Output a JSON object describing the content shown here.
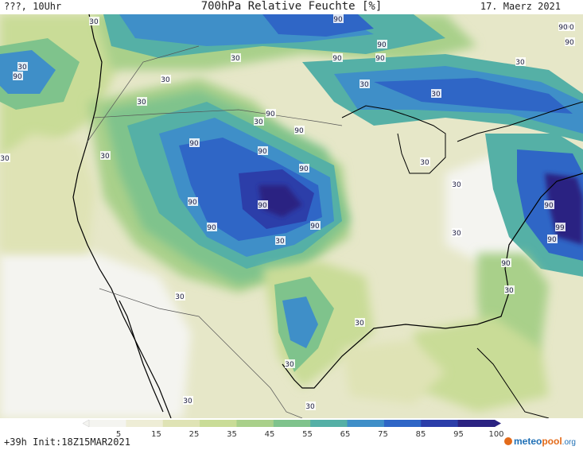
{
  "header": {
    "left": "???, 10Uhr",
    "title": "700hPa Relative Feuchte [%]",
    "date": "17. Maerz 2021"
  },
  "footer": {
    "left": "+39h Init:18Z15MAR2021",
    "logo_meteo": "meteo",
    "logo_pool": "pool",
    "logo_org": ".org"
  },
  "legend": {
    "ticks": [
      "5",
      "15",
      "25",
      "35",
      "45",
      "55",
      "65",
      "75",
      "85",
      "95",
      "100"
    ],
    "colors": [
      "#f4f4f0",
      "#eeedd6",
      "#dfe3b5",
      "#c9dc97",
      "#a9d08a",
      "#7fc38c",
      "#55b0a6",
      "#3f8fc8",
      "#2f66c6",
      "#2c3ea9",
      "#2b2382"
    ]
  },
  "map_labels": [
    {
      "text": "30"
    },
    {
      "text": "30"
    },
    {
      "text": "90"
    },
    {
      "text": "30"
    },
    {
      "text": "30"
    },
    {
      "text": "30"
    },
    {
      "text": "90"
    },
    {
      "text": "90"
    },
    {
      "text": "90"
    },
    {
      "text": "90"
    },
    {
      "text": "30"
    },
    {
      "text": "90"
    },
    {
      "text": "30"
    },
    {
      "text": "90"
    },
    {
      "text": "30"
    },
    {
      "text": "90"
    },
    {
      "text": "90"
    },
    {
      "text": "90"
    },
    {
      "text": "90"
    },
    {
      "text": "90"
    },
    {
      "text": "90"
    },
    {
      "text": "30"
    },
    {
      "text": "30"
    },
    {
      "text": "30"
    },
    {
      "text": "90"
    },
    {
      "text": "90"
    },
    {
      "text": "90"
    },
    {
      "text": "30"
    },
    {
      "text": "30"
    },
    {
      "text": "30"
    },
    {
      "text": "30"
    },
    {
      "text": "30"
    },
    {
      "text": "30"
    },
    {
      "text": "30"
    },
    {
      "text": "30"
    },
    {
      "text": "99"
    },
    {
      "text": "90"
    },
    {
      "text": "90"
    },
    {
      "text": "30"
    },
    {
      "text": "30"
    },
    {
      "text": "90"
    },
    {
      "text": "90"
    }
  ],
  "theme": {
    "coast": "#000000",
    "border": "#555555",
    "label_bg": "#ffffff",
    "label_fg": "#1a1a40"
  }
}
